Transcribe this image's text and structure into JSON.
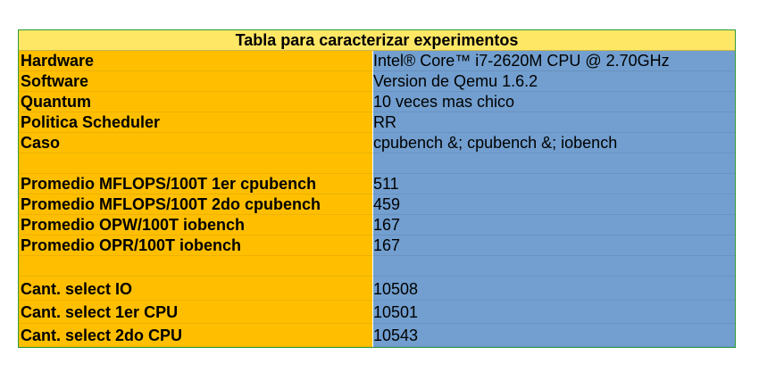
{
  "table": {
    "title": "Tabla para caracterizar experimentos",
    "rows": [
      {
        "label": "Hardware",
        "value": "Intel® Core™ i7-2620M CPU @ 2.70GHz"
      },
      {
        "label": "Software",
        "value": "Version de Qemu 1.6.2"
      },
      {
        "label": "Quantum",
        "value": "10 veces mas chico"
      },
      {
        "label": "Politica Scheduler",
        "value": "RR"
      },
      {
        "label": "Caso",
        "value": "cpubench &; cpubench &; iobench"
      },
      {
        "label": "",
        "value": ""
      },
      {
        "label": "Promedio MFLOPS/100T 1er cpubench",
        "value": "511"
      },
      {
        "label": "Promedio MFLOPS/100T 2do cpubench",
        "value": "459"
      },
      {
        "label": "Promedio OPW/100T iobench",
        "value": "167"
      },
      {
        "label": "Promedio OPR/100T iobench",
        "value": "167"
      },
      {
        "label": "",
        "value": ""
      },
      {
        "label": "Cant. select IO",
        "value": "10508"
      },
      {
        "label": "Cant. select 1er CPU",
        "value": "10501"
      },
      {
        "label": "Cant. select 2do CPU",
        "value": "10543"
      }
    ]
  },
  "colors": {
    "title_background": "#ffe766",
    "label_column": "#ffbf00",
    "value_column": "#729fcf",
    "border": "#2e9a3a"
  }
}
